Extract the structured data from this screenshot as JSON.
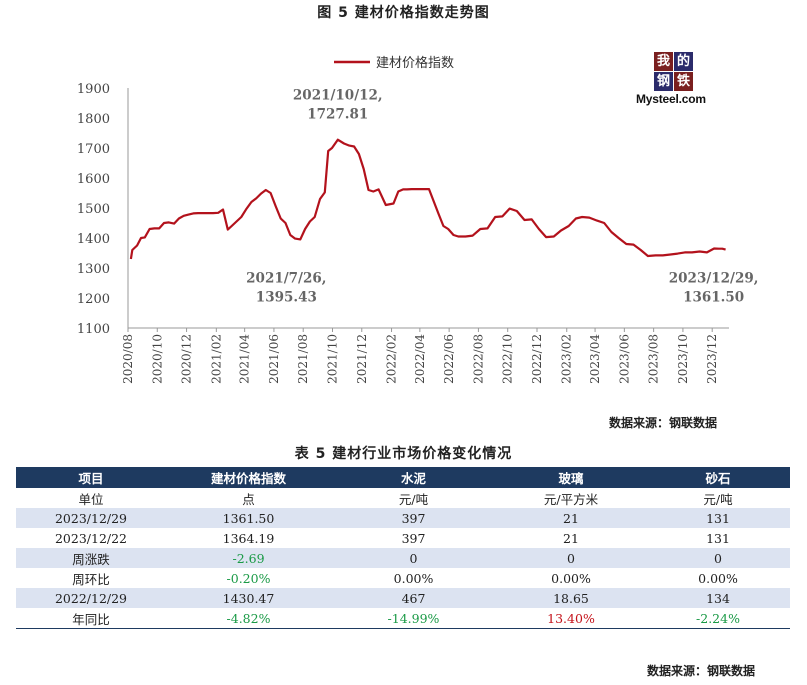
{
  "figure_title": "图 5  建材价格指数走势图",
  "chart_data": {
    "type": "line",
    "title": "",
    "series": [
      {
        "name": "建材价格指数",
        "color": "#b3121c",
        "x": [
          "2020-08-07",
          "2020-08-10",
          "2020-08-20",
          "2020-08-28",
          "2020-09-05",
          "2020-09-15",
          "2020-09-25",
          "2020-10-05",
          "2020-10-15",
          "2020-10-25",
          "2020-11-05",
          "2020-11-15",
          "2020-11-25",
          "2020-12-05",
          "2020-12-15",
          "2020-12-25",
          "2021-01-10",
          "2021-01-25",
          "2021-02-05",
          "2021-02-15",
          "2021-02-25",
          "2021-03-05",
          "2021-03-15",
          "2021-03-25",
          "2021-04-05",
          "2021-04-15",
          "2021-04-25",
          "2021-05-05",
          "2021-05-15",
          "2021-05-25",
          "2021-06-05",
          "2021-06-15",
          "2021-06-25",
          "2021-07-05",
          "2021-07-15",
          "2021-07-26",
          "2021-08-05",
          "2021-08-15",
          "2021-08-25",
          "2021-09-05",
          "2021-09-15",
          "2021-09-22",
          "2021-09-30",
          "2021-10-12",
          "2021-10-25",
          "2021-11-05",
          "2021-11-15",
          "2021-11-25",
          "2021-12-05",
          "2021-12-15",
          "2021-12-25",
          "2022-01-05",
          "2022-01-20",
          "2022-02-05",
          "2022-02-15",
          "2022-02-25",
          "2022-03-05",
          "2022-03-15",
          "2022-04-01",
          "2022-04-20",
          "2022-05-10",
          "2022-05-20",
          "2022-05-30",
          "2022-06-10",
          "2022-06-20",
          "2022-07-05",
          "2022-07-20",
          "2022-08-05",
          "2022-08-20",
          "2022-09-05",
          "2022-09-20",
          "2022-10-05",
          "2022-10-20",
          "2022-11-05",
          "2022-11-20",
          "2022-12-05",
          "2022-12-20",
          "2023-01-05",
          "2023-01-20",
          "2023-02-05",
          "2023-02-20",
          "2023-03-05",
          "2023-03-20",
          "2023-04-05",
          "2023-04-20",
          "2023-05-05",
          "2023-05-20",
          "2023-06-05",
          "2023-06-20",
          "2023-07-05",
          "2023-07-20",
          "2023-08-05",
          "2023-08-20",
          "2023-09-05",
          "2023-09-20",
          "2023-10-05",
          "2023-10-20",
          "2023-11-05",
          "2023-11-20",
          "2023-12-05",
          "2023-12-15",
          "2023-12-22",
          "2023-12-29"
        ],
        "y": [
          1330,
          1360,
          1375,
          1400,
          1402,
          1430,
          1432,
          1432,
          1450,
          1452,
          1448,
          1465,
          1474,
          1478,
          1482,
          1483,
          1483,
          1483,
          1484,
          1495,
          1428,
          1440,
          1455,
          1470,
          1498,
          1520,
          1532,
          1548,
          1560,
          1550,
          1505,
          1465,
          1450,
          1410,
          1398,
          1395.43,
          1430,
          1455,
          1470,
          1530,
          1552,
          1690,
          1700,
          1727.81,
          1715,
          1708,
          1705,
          1680,
          1630,
          1560,
          1555,
          1562,
          1510,
          1515,
          1555,
          1562,
          1562,
          1563,
          1563,
          1563,
          1480,
          1440,
          1430,
          1410,
          1405,
          1405,
          1408,
          1430,
          1432,
          1470,
          1472,
          1498,
          1490,
          1460,
          1462,
          1430,
          1403,
          1405,
          1425,
          1440,
          1465,
          1470,
          1468,
          1458,
          1450,
          1420,
          1400,
          1380,
          1378,
          1360,
          1340,
          1342,
          1342,
          1345,
          1348,
          1352,
          1352,
          1355,
          1352,
          1365,
          1364.19,
          1364.19,
          1361.5
        ]
      }
    ],
    "xlabel": "",
    "ylabel": "",
    "ylim": [
      1100,
      1900
    ],
    "yticks": [
      1100,
      1200,
      1300,
      1400,
      1500,
      1600,
      1700,
      1800,
      1900
    ],
    "xtick_labels": [
      "2020/08",
      "2020/10",
      "2020/12",
      "2021/02",
      "2021/04",
      "2021/06",
      "2021/08",
      "2021/10",
      "2021/12",
      "2022/02",
      "2022/04",
      "2022/06",
      "2022/08",
      "2022/10",
      "2022/12",
      "2023/02",
      "2023/04",
      "2023/06",
      "2023/08",
      "2023/10",
      "2023/12"
    ],
    "xtick_dates": [
      "2020-08-01",
      "2020-10-01",
      "2020-12-01",
      "2021-02-01",
      "2021-04-01",
      "2021-06-01",
      "2021-08-01",
      "2021-10-01",
      "2021-12-01",
      "2022-02-01",
      "2022-04-01",
      "2022-06-01",
      "2022-08-01",
      "2022-10-01",
      "2022-12-01",
      "2023-02-01",
      "2023-04-01",
      "2023-06-01",
      "2023-08-01",
      "2023-10-01",
      "2023-12-01"
    ],
    "xlim": [
      "2020-08-01",
      "2024-01-05"
    ],
    "grid": false,
    "legend_position": "top-center",
    "annotations": [
      {
        "lines": [
          "2021/10/12,",
          "1727.81"
        ],
        "x": "2021-10-12",
        "y": 1727.81
      },
      {
        "lines": [
          "2021/7/26,",
          "1395.43"
        ],
        "x": "2021-07-26",
        "y": 1395.43
      },
      {
        "lines": [
          "2023/12/29,",
          "1361.50"
        ],
        "x": "2023-12-29",
        "y": 1361.5
      }
    ]
  },
  "logo": {
    "chars": [
      "我",
      "的",
      "钢",
      "铁"
    ],
    "text": "Mysteel.com"
  },
  "source_label": "数据来源：钢联数据",
  "table": {
    "title": "表 5 建材行业市场价格变化情况",
    "headers": [
      "项目",
      "建材价格指数",
      "水泥",
      "玻璃",
      "砂石"
    ],
    "rows": [
      [
        "单位",
        "点",
        "元/吨",
        "元/平方米",
        "元/吨"
      ],
      [
        "2023/12/29",
        "1361.50",
        "397",
        "21",
        "131"
      ],
      [
        "2023/12/22",
        "1364.19",
        "397",
        "21",
        "131"
      ],
      [
        "周涨跌",
        "-2.69",
        "0",
        "0",
        "0"
      ],
      [
        "周环比",
        "-0.20%",
        "0.00%",
        "0.00%",
        "0.00%"
      ],
      [
        "2022/12/29",
        "1430.47",
        "467",
        "18.65",
        "134"
      ],
      [
        "年同比",
        "-4.82%",
        "-14.99%",
        "13.40%",
        "-2.24%"
      ]
    ],
    "neg_color": "#1a9a46",
    "pos_color": "#c4121a"
  },
  "table_source_label": "数据来源：钢联数据"
}
